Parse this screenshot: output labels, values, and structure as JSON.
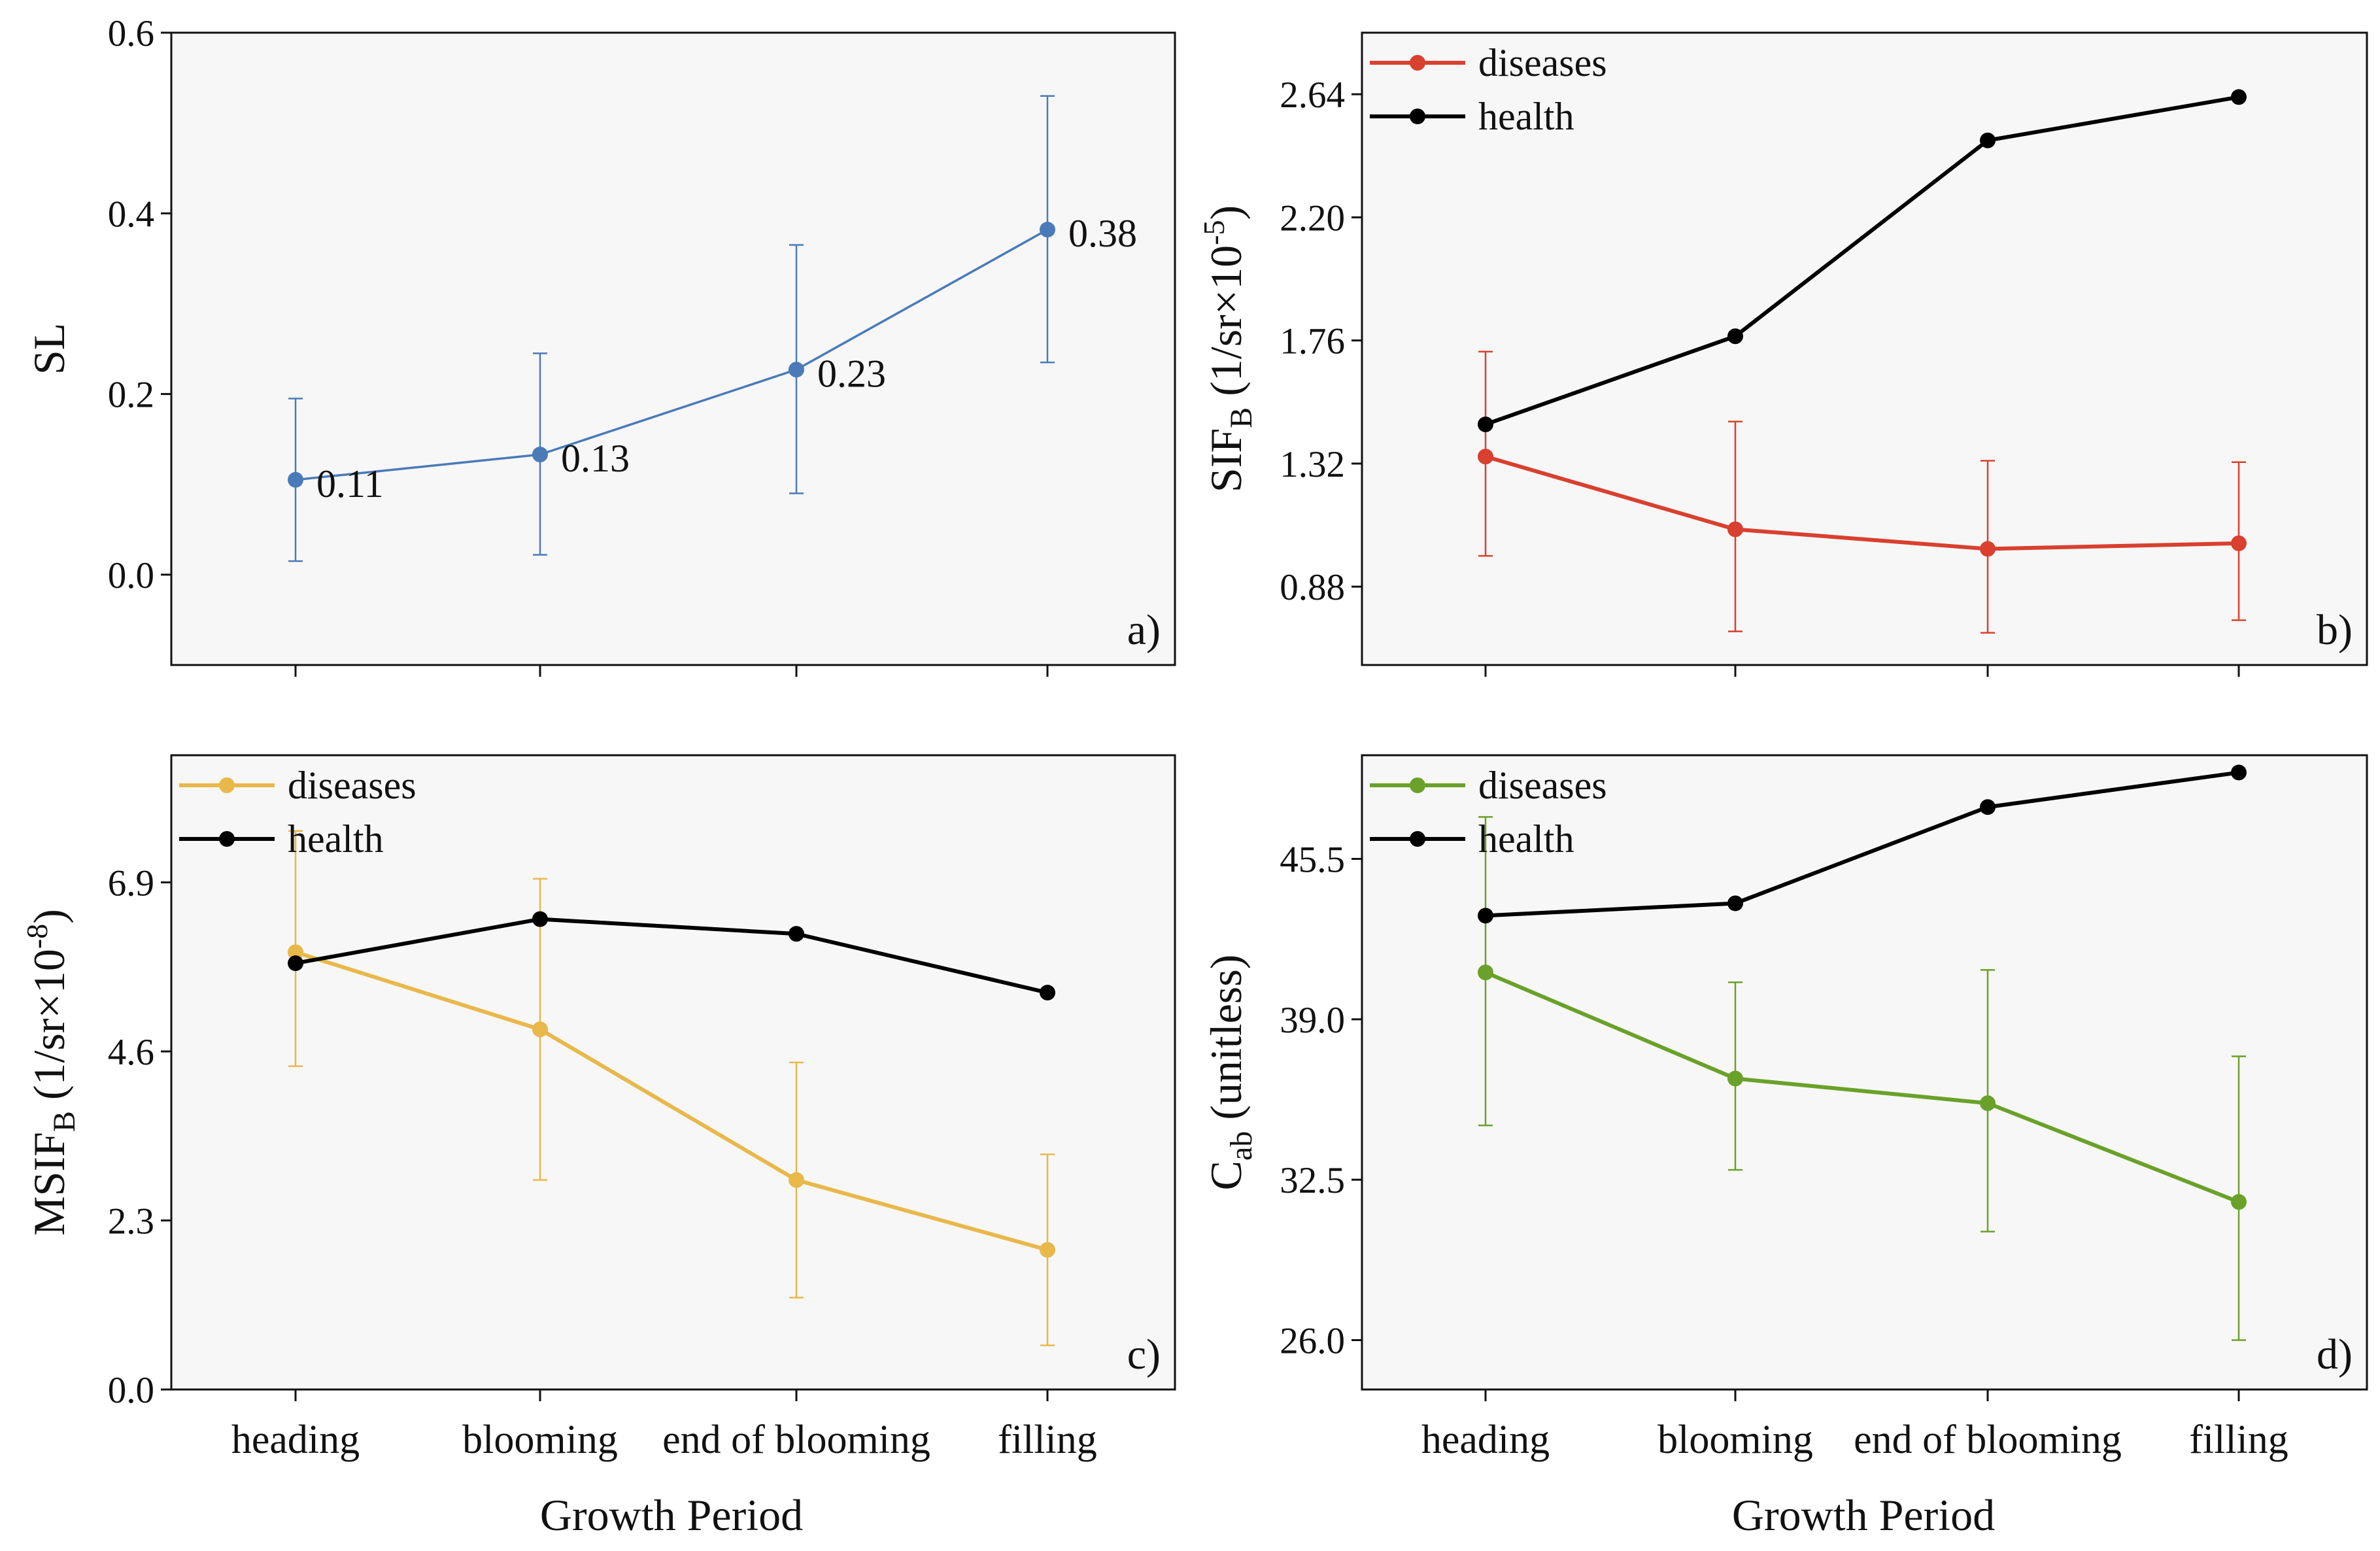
{
  "figure": {
    "x_axis_title": "Growth Period",
    "categories": [
      "heading",
      "blooming",
      "end of blooming",
      "filling"
    ]
  },
  "colors": {
    "panel_bg": "#f7f7f7",
    "axis": "#111111",
    "sl": "#4a7ab8",
    "sif_diseases": "#d9402f",
    "msif_diseases": "#e8b84b",
    "cab_diseases": "#6aa12a",
    "health": "#000000"
  },
  "chart_data": [
    {
      "type": "line",
      "panel": "a)",
      "ylabel": "SL",
      "ylim": [
        -0.1,
        0.6
      ],
      "yticks": [
        "0.0",
        "0.2",
        "0.4",
        "0.6"
      ],
      "categories": [
        "heading",
        "blooming",
        "end of blooming",
        "filling"
      ],
      "series": [
        {
          "name": "SL",
          "color_key": "sl",
          "values": [
            0.105,
            0.133,
            0.227,
            0.382
          ],
          "err_low": [
            0.015,
            0.022,
            0.09,
            0.235
          ],
          "err_high": [
            0.195,
            0.245,
            0.365,
            0.53
          ],
          "labels": [
            "0.11",
            "0.13",
            "0.23",
            "0.38"
          ]
        }
      ]
    },
    {
      "type": "line",
      "panel": "b)",
      "ylabel_main": "SIF",
      "ylabel_sub": "B",
      "ylabel_rest": " (1/sr×10",
      "ylabel_sup": "-5",
      "ylabel_end": ")",
      "ylim": [
        0.6,
        2.86
      ],
      "yticks": [
        "0.88",
        "1.32",
        "1.76",
        "2.20",
        "2.64"
      ],
      "categories": [
        "heading",
        "blooming",
        "end of blooming",
        "filling"
      ],
      "legend": [
        "diseases",
        "health"
      ],
      "series": [
        {
          "name": "diseases",
          "color_key": "sif_diseases",
          "values": [
            1.345,
            1.085,
            1.015,
            1.035
          ],
          "err_low": [
            0.99,
            0.72,
            0.715,
            0.76
          ],
          "err_high": [
            1.72,
            1.47,
            1.33,
            1.325
          ]
        },
        {
          "name": "health",
          "color_key": "health",
          "values": [
            1.46,
            1.775,
            2.475,
            2.63
          ]
        }
      ]
    },
    {
      "type": "line",
      "panel": "c)",
      "ylabel_main": "MSIF",
      "ylabel_sub": "B",
      "ylabel_rest": " (1/sr×10",
      "ylabel_sup": "-8",
      "ylabel_end": ")",
      "ylim": [
        0.0,
        8.63
      ],
      "yticks": [
        "0.0",
        "2.3",
        "4.6",
        "6.9"
      ],
      "categories": [
        "heading",
        "blooming",
        "end of blooming",
        "filling"
      ],
      "legend": [
        "diseases",
        "health"
      ],
      "series": [
        {
          "name": "diseases",
          "color_key": "msif_diseases",
          "values": [
            5.95,
            4.9,
            2.85,
            1.9
          ],
          "err_low": [
            4.4,
            2.85,
            1.25,
            0.6
          ],
          "err_high": [
            7.6,
            6.95,
            4.45,
            3.2
          ]
        },
        {
          "name": "health",
          "color_key": "health",
          "values": [
            5.8,
            6.4,
            6.2,
            5.4
          ]
        }
      ]
    },
    {
      "type": "line",
      "panel": "d)",
      "ylabel_main": "C",
      "ylabel_sub": "ab",
      "ylabel_rest": " (unitless)",
      "ylabel_sup": "",
      "ylabel_end": "",
      "ylim": [
        24.0,
        49.7
      ],
      "yticks": [
        "26.0",
        "32.5",
        "39.0",
        "45.5"
      ],
      "categories": [
        "heading",
        "blooming",
        "end of blooming",
        "filling"
      ],
      "legend": [
        "diseases",
        "health"
      ],
      "series": [
        {
          "name": "diseases",
          "color_key": "cab_diseases",
          "values": [
            40.9,
            36.6,
            35.6,
            31.6
          ],
          "err_low": [
            34.7,
            32.9,
            30.4,
            26.0
          ],
          "err_high": [
            47.2,
            40.5,
            41.0,
            37.5
          ]
        },
        {
          "name": "health",
          "color_key": "health",
          "values": [
            43.2,
            43.7,
            47.6,
            49.0
          ]
        }
      ]
    }
  ]
}
